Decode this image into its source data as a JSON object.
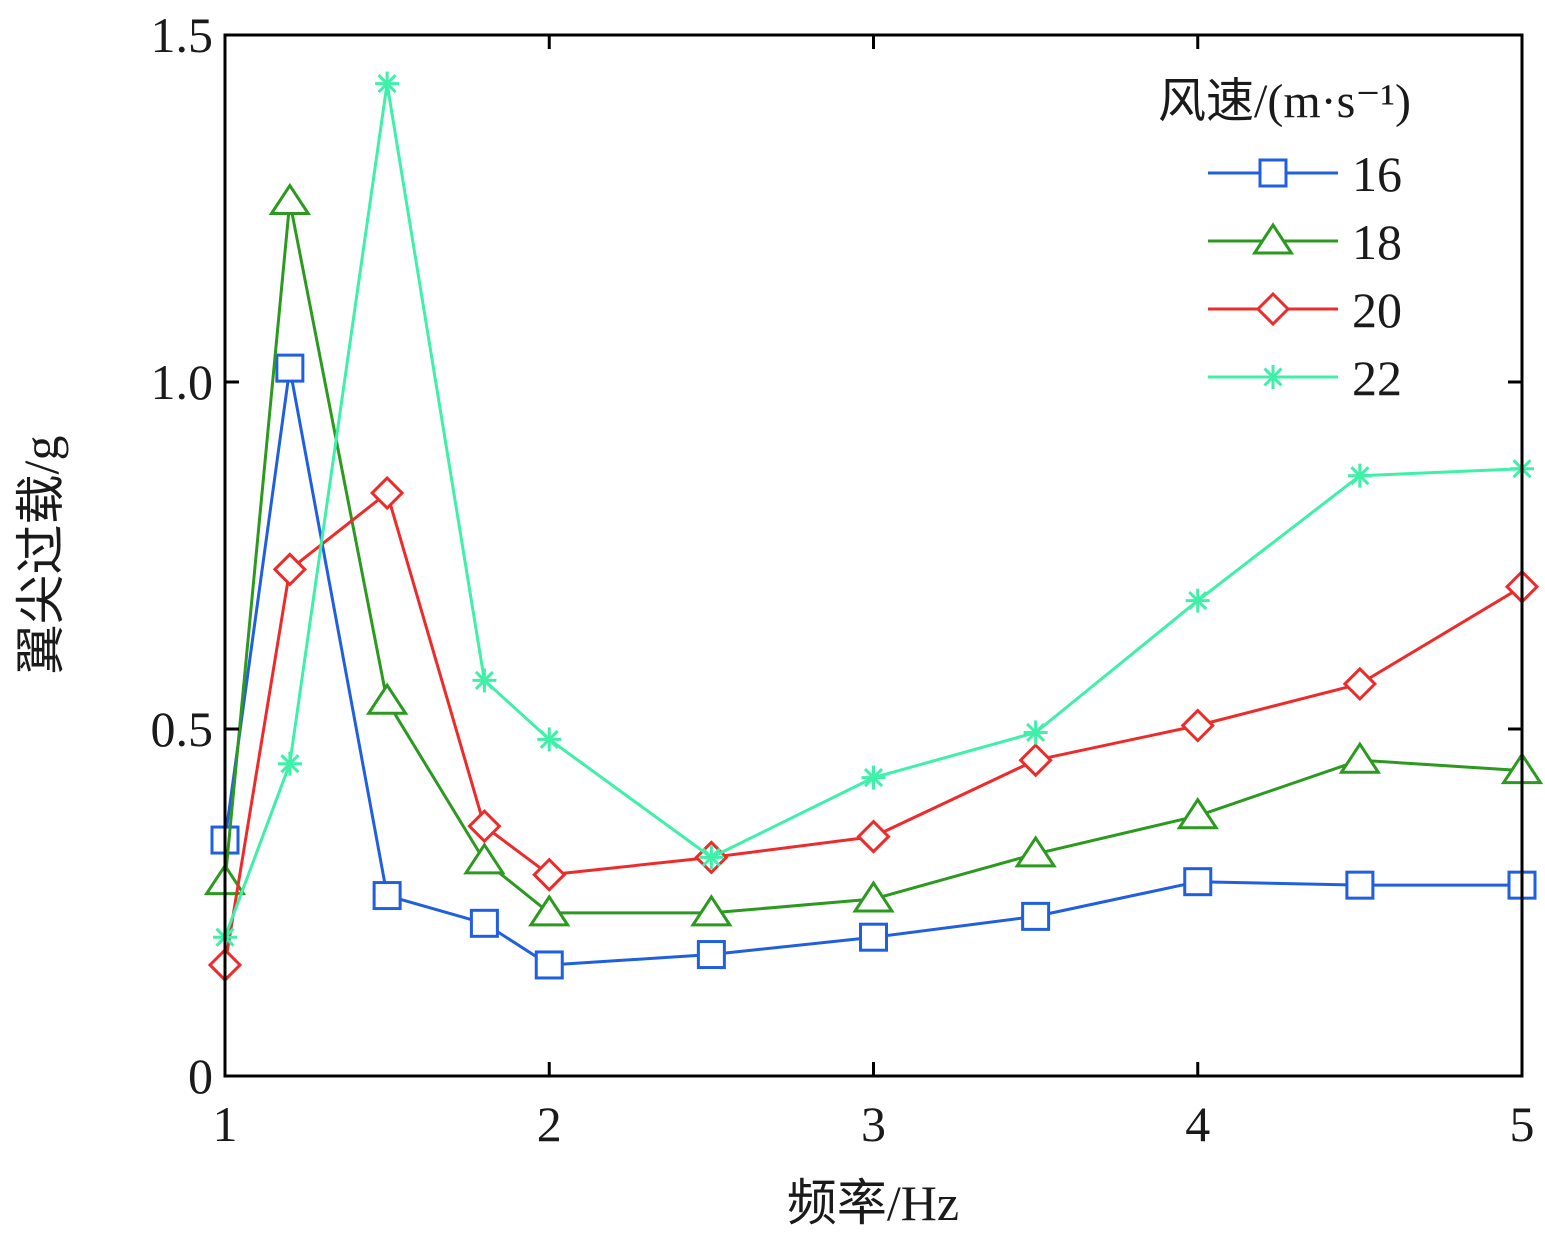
{
  "chart_data": {
    "type": "line",
    "xlabel": "频率/Hz",
    "ylabel": "翼尖过载/g",
    "xlim": [
      1,
      5
    ],
    "ylim": [
      0,
      1.5
    ],
    "xticks": [
      1,
      2,
      3,
      4,
      5
    ],
    "xtick_labels": [
      "1",
      "2",
      "3",
      "4",
      "5"
    ],
    "yticks": [
      0,
      0.5,
      1.0,
      1.5
    ],
    "ytick_labels": [
      "0",
      "0.5",
      "1.0",
      "1.5"
    ],
    "grid": false,
    "legend": {
      "title": "风速/(m·s⁻¹)",
      "position": "top-right"
    },
    "x": [
      1.0,
      1.2,
      1.5,
      1.8,
      2.0,
      2.5,
      3.0,
      3.5,
      4.0,
      4.5,
      5.0
    ],
    "series": [
      {
        "name": "16",
        "color": "#1f5fe0",
        "marker": "square",
        "values": [
          0.34,
          1.02,
          0.26,
          0.22,
          0.16,
          0.175,
          0.2,
          0.23,
          0.28,
          0.275,
          0.275
        ]
      },
      {
        "name": "18",
        "color": "#2b9a1f",
        "marker": "triangle",
        "values": [
          0.28,
          1.26,
          0.54,
          0.31,
          0.235,
          0.235,
          0.255,
          0.32,
          0.375,
          0.455,
          0.44
        ]
      },
      {
        "name": "20",
        "color": "#ee2b2b",
        "marker": "diamond",
        "values": [
          0.16,
          0.73,
          0.84,
          0.36,
          0.29,
          0.315,
          0.345,
          0.455,
          0.505,
          0.565,
          0.705
        ]
      },
      {
        "name": "22",
        "color": "#3ef0a8",
        "marker": "star",
        "values": [
          0.2,
          0.45,
          1.43,
          0.57,
          0.485,
          0.315,
          0.43,
          0.495,
          0.685,
          0.865,
          0.875
        ]
      }
    ]
  }
}
